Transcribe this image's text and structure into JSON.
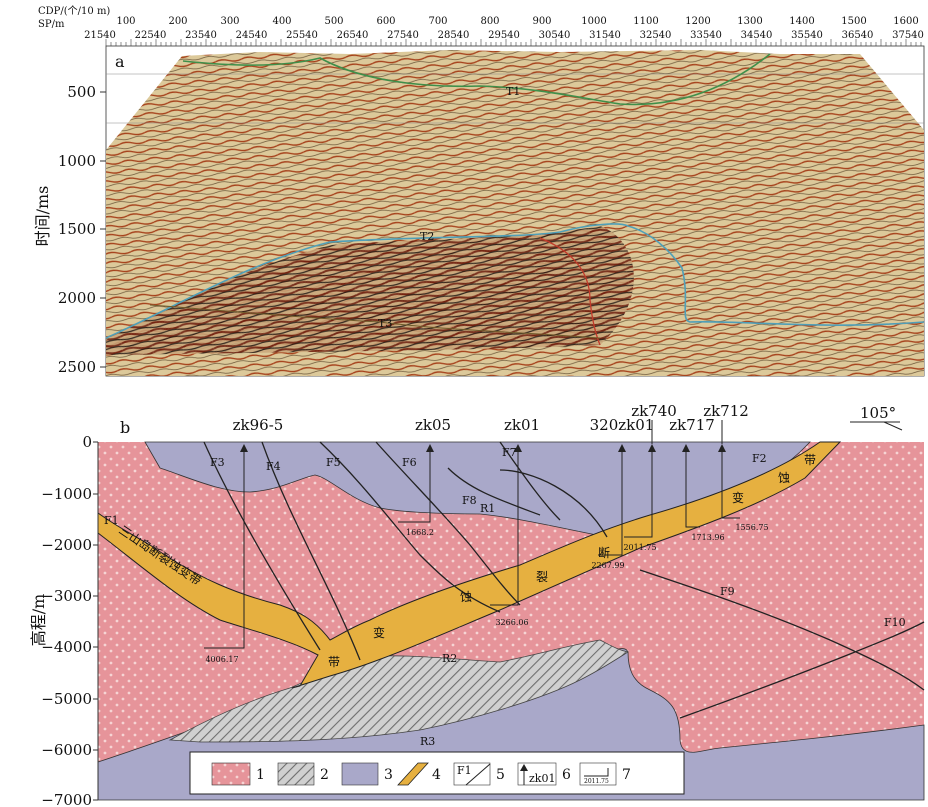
{
  "panel_a": {
    "panel_label": "a",
    "cdp_axis_title": "CDP/(个/10 m)",
    "sp_axis_title": "SP/m",
    "cdp_ticks": [
      "100",
      "200",
      "300",
      "400",
      "500",
      "600",
      "700",
      "800",
      "900",
      "1000",
      "1100",
      "1200",
      "1300",
      "1400",
      "1500",
      "1600"
    ],
    "sp_ticks": [
      "21540",
      "22540",
      "23540",
      "24540",
      "25540",
      "26540",
      "27540",
      "28540",
      "29540",
      "30540",
      "31540",
      "32540",
      "33540",
      "34540",
      "35540",
      "36540",
      "37540"
    ],
    "y_axis_title": "时间/ms",
    "y_ticks": [
      "500",
      "1000",
      "1500",
      "2000",
      "2500"
    ],
    "horizon_labels": [
      "T1",
      "T2",
      "T3"
    ],
    "colors": {
      "seismic_base": "#d9c79a",
      "green_horizon": "#3f8f4a",
      "blue_horizon": "#4f9fb8",
      "red_horizon": "#c23a2a"
    }
  },
  "panel_b": {
    "panel_label": "b",
    "azimuth": "105°",
    "y_axis_title": "高程/m",
    "y_ticks": [
      "0",
      "−1000",
      "−2000",
      "−3000",
      "−4000",
      "−5000",
      "−6000",
      "−7000"
    ],
    "wells": [
      "zk96-5",
      "zk05",
      "zk01",
      "320zk01",
      "zk740",
      "zk717",
      "zk712"
    ],
    "depth_labels": [
      "4006.17",
      "1668.2",
      "3266.06",
      "2267.99",
      "2011.75",
      "1713.96",
      "1556.75"
    ],
    "faults": [
      "F1",
      "F2",
      "F3",
      "F4",
      "F5",
      "F6",
      "F7",
      "F8",
      "F9",
      "F10"
    ],
    "units": [
      "R1",
      "R2",
      "R3"
    ],
    "zone_label_left": "三山岛断裂蚀变带",
    "zone_chars": [
      "带",
      "变",
      "蚀",
      "裂",
      "断",
      "变",
      "蚀",
      "带"
    ],
    "legend": [
      "1",
      "2",
      "3",
      "4",
      "5",
      "6",
      "7"
    ],
    "legend_samples": {
      "fault": "F1",
      "well": "zk01",
      "depth": "2011.75"
    },
    "colors": {
      "granite": "#e6949a",
      "granite_dot": "#f6d4d4",
      "gneiss": "#a9a8c9",
      "alteration_zone": "#e6b040",
      "hatch": "#808080"
    }
  }
}
